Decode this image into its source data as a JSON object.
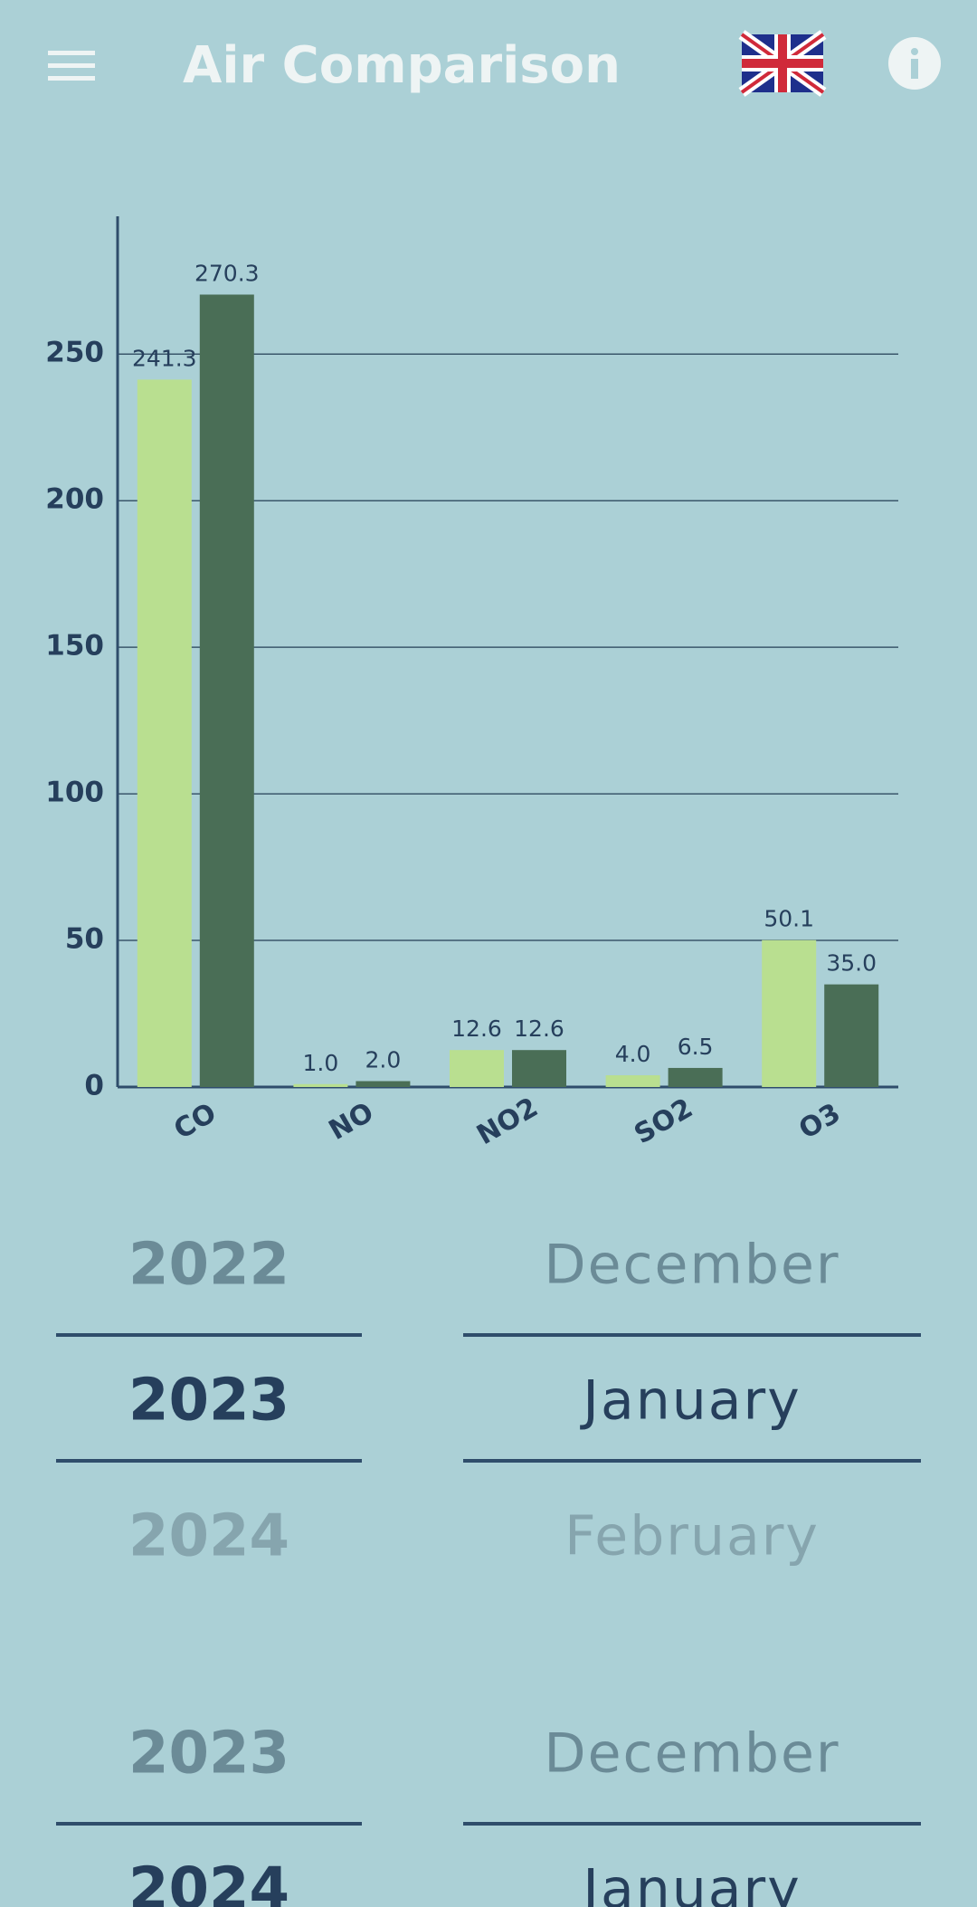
{
  "header": {
    "title": "Air Comparison"
  },
  "chart_data": {
    "type": "bar",
    "categories": [
      "CO",
      "NO",
      "NO2",
      "SO2",
      "O3"
    ],
    "series": [
      {
        "color": "#b9df90",
        "values": [
          241.3,
          1.0,
          12.6,
          4.0,
          50.1
        ],
        "value_labels": [
          "241.3",
          "1.0",
          "12.6",
          "4.0",
          "50.1"
        ]
      },
      {
        "color": "#4a6e56",
        "values": [
          270.3,
          2.0,
          12.6,
          6.5,
          35.0
        ],
        "value_labels": [
          "270.3",
          "2.0",
          "12.6",
          "6.5",
          "35.0"
        ]
      }
    ],
    "ylim": [
      0,
      297
    ],
    "yticks": [
      0,
      50,
      100,
      150,
      200,
      250
    ],
    "grid": true
  },
  "pickers": [
    {
      "years": [
        "2022",
        "2023",
        "2024"
      ],
      "months": [
        "December",
        "January",
        "February"
      ]
    },
    {
      "years": [
        "2023",
        "2024"
      ],
      "months": [
        "December",
        "January"
      ]
    }
  ]
}
